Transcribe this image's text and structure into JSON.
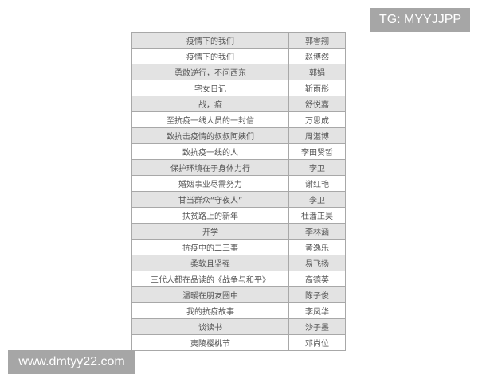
{
  "rows": [
    {
      "title": "疫情下的我们",
      "author": "郭睿翔"
    },
    {
      "title": "疫情下的我们",
      "author": "赵博然"
    },
    {
      "title": "勇敢逆行，不问西东",
      "author": "郭娟"
    },
    {
      "title": "宅女日记",
      "author": "靳雨彤"
    },
    {
      "title": "战，疫",
      "author": "舒悦嘉"
    },
    {
      "title": "至抗疫一线人员的一封信",
      "author": "万思成"
    },
    {
      "title": "致抗击疫情的叔叔阿姨们",
      "author": "周湛博"
    },
    {
      "title": "致抗疫一线的人",
      "author": "李田贤哲"
    },
    {
      "title": "保护环境在于身体力行",
      "author": "李卫"
    },
    {
      "title": "婚姻事业尽需努力",
      "author": "谢红艳"
    },
    {
      "title": "甘当群众“守夜人”",
      "author": "李卫"
    },
    {
      "title": "扶贫路上的新年",
      "author": "杜潘正昊"
    },
    {
      "title": "开学",
      "author": "李林涵"
    },
    {
      "title": "抗疫中的二三事",
      "author": "黄逸乐"
    },
    {
      "title": "柔软且坚强",
      "author": "易飞扬"
    },
    {
      "title": "三代人都在品读的《战争与和平》",
      "author": "高德英"
    },
    {
      "title": "温暖在朋友圈中",
      "author": "陈子俊"
    },
    {
      "title": "我的抗疫故事",
      "author": "李凤华"
    },
    {
      "title": "谈读书",
      "author": "沙子墨"
    },
    {
      "title": "夷陵樱桃节",
      "author": "邓尚位"
    }
  ],
  "watermarks": {
    "top_right": "TG: MYYJJPP",
    "bottom_left": "www.dmtyy22.com"
  }
}
